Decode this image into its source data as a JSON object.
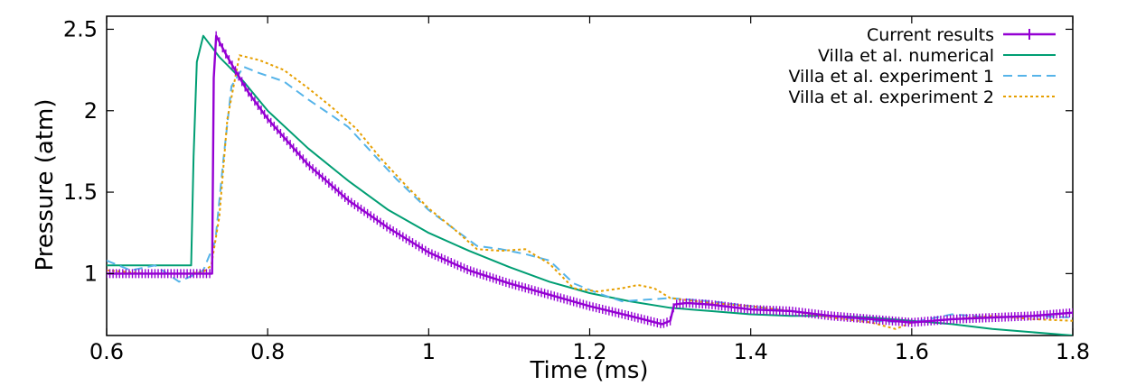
{
  "chart_data": {
    "type": "line",
    "xlabel": "Time (ms)",
    "ylabel": "Pressure (atm)",
    "xlim": [
      0.6,
      1.8
    ],
    "ylim": [
      0.62,
      2.58
    ],
    "xticks": [
      0.6,
      0.8,
      1.0,
      1.2,
      1.4,
      1.6,
      1.8
    ],
    "xtick_labels": [
      "0.6",
      "0.8",
      "1",
      "1.2",
      "1.4",
      "1.6",
      "1.8"
    ],
    "yticks": [
      1.0,
      1.5,
      2.0,
      2.5
    ],
    "ytick_labels": [
      "1",
      "1.5",
      "2",
      "2.5"
    ],
    "grid": false,
    "legend_position": "top-right",
    "series": [
      {
        "name": "Current results",
        "color": "#9400d3",
        "style": "solid-markers",
        "x": [
          0.6,
          0.65,
          0.7,
          0.731,
          0.733,
          0.736,
          0.75,
          0.775,
          0.8,
          0.85,
          0.9,
          0.95,
          1.0,
          1.05,
          1.1,
          1.15,
          1.2,
          1.25,
          1.29,
          1.3,
          1.305,
          1.32,
          1.35,
          1.4,
          1.45,
          1.5,
          1.55,
          1.6,
          1.65,
          1.7,
          1.75,
          1.8
        ],
        "y": [
          1.0,
          1.0,
          1.0,
          1.0,
          2.2,
          2.46,
          2.33,
          2.12,
          1.95,
          1.67,
          1.45,
          1.28,
          1.13,
          1.02,
          0.94,
          0.87,
          0.8,
          0.74,
          0.69,
          0.71,
          0.81,
          0.82,
          0.81,
          0.78,
          0.77,
          0.74,
          0.72,
          0.7,
          0.72,
          0.73,
          0.74,
          0.76
        ]
      },
      {
        "name": "Villa et al. numerical",
        "color": "#009e73",
        "style": "solid",
        "x": [
          0.6,
          0.66,
          0.705,
          0.708,
          0.712,
          0.72,
          0.74,
          0.77,
          0.8,
          0.85,
          0.9,
          0.95,
          1.0,
          1.05,
          1.1,
          1.15,
          1.2,
          1.25,
          1.3,
          1.35,
          1.4,
          1.45,
          1.5,
          1.55,
          1.6,
          1.65,
          1.7,
          1.75,
          1.8
        ],
        "y": [
          1.05,
          1.05,
          1.05,
          1.72,
          2.3,
          2.46,
          2.33,
          2.18,
          2.0,
          1.77,
          1.57,
          1.39,
          1.25,
          1.14,
          1.04,
          0.95,
          0.88,
          0.83,
          0.79,
          0.77,
          0.75,
          0.74,
          0.74,
          0.73,
          0.71,
          0.69,
          0.66,
          0.64,
          0.62
        ]
      },
      {
        "name": "Villa et al. experiment 1",
        "color": "#56b4e9",
        "style": "dashed",
        "x": [
          0.6,
          0.63,
          0.66,
          0.69,
          0.72,
          0.735,
          0.745,
          0.755,
          0.77,
          0.79,
          0.82,
          0.85,
          0.88,
          0.9,
          0.93,
          0.96,
          1.0,
          1.03,
          1.06,
          1.09,
          1.12,
          1.15,
          1.18,
          1.21,
          1.24,
          1.27,
          1.3,
          1.35,
          1.4,
          1.45,
          1.5,
          1.55,
          1.6,
          1.65,
          1.7,
          1.75,
          1.8
        ],
        "y": [
          1.08,
          1.02,
          1.05,
          0.95,
          1.02,
          1.2,
          1.7,
          2.15,
          2.27,
          2.23,
          2.18,
          2.07,
          1.97,
          1.9,
          1.74,
          1.58,
          1.39,
          1.28,
          1.17,
          1.15,
          1.12,
          1.08,
          0.94,
          0.88,
          0.83,
          0.84,
          0.85,
          0.83,
          0.8,
          0.77,
          0.74,
          0.71,
          0.7,
          0.75,
          0.73,
          0.74,
          0.73
        ]
      },
      {
        "name": "Villa et al. experiment 2",
        "color": "#e69f00",
        "style": "dotted",
        "x": [
          0.6,
          0.65,
          0.7,
          0.72,
          0.73,
          0.74,
          0.75,
          0.765,
          0.79,
          0.82,
          0.85,
          0.88,
          0.91,
          0.94,
          0.97,
          1.0,
          1.03,
          1.06,
          1.09,
          1.12,
          1.15,
          1.18,
          1.21,
          1.24,
          1.26,
          1.28,
          1.3,
          1.35,
          1.4,
          1.45,
          1.5,
          1.55,
          1.58,
          1.6,
          1.65,
          1.7,
          1.75,
          1.8
        ],
        "y": [
          1.02,
          1.0,
          1.0,
          1.01,
          1.05,
          1.35,
          1.95,
          2.34,
          2.31,
          2.25,
          2.14,
          2.02,
          1.89,
          1.71,
          1.55,
          1.4,
          1.28,
          1.15,
          1.14,
          1.15,
          1.06,
          0.91,
          0.89,
          0.91,
          0.93,
          0.91,
          0.85,
          0.82,
          0.8,
          0.77,
          0.73,
          0.7,
          0.66,
          0.7,
          0.72,
          0.74,
          0.72,
          0.71
        ]
      }
    ]
  }
}
